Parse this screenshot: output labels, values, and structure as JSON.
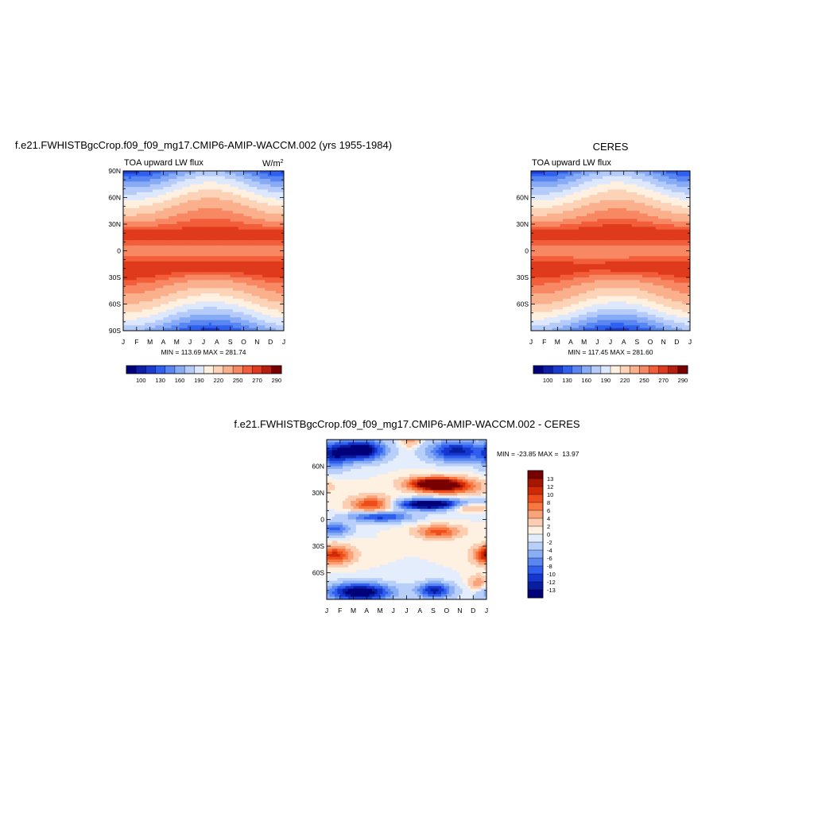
{
  "chart_data": [
    {
      "type": "heatmap",
      "title": "f.e21.FWHISTBgcCrop.f09_f09_mg17.CMIP6-AMIP-WACCM.002 (yrs 1955-1984)",
      "left_label": "TOA upward LW flux",
      "units_base": "W/m",
      "units_exp": "2",
      "x_ticks": [
        "J",
        "F",
        "M",
        "A",
        "M",
        "J",
        "J",
        "A",
        "S",
        "O",
        "N",
        "D",
        "J"
      ],
      "y_ticks": [
        "90N",
        "60N",
        "30N",
        "0",
        "30S",
        "60S",
        "90S"
      ],
      "stats": "MIN = 113.69 MAX = 281.74",
      "colorbar_ticks": [
        "100",
        "130",
        "160",
        "190",
        "220",
        "250",
        "270",
        "290"
      ],
      "xlim": [
        0,
        12
      ],
      "ylim": [
        -90,
        90
      ]
    },
    {
      "type": "heatmap",
      "title": "CERES",
      "left_label": "TOA upward LW flux",
      "x_ticks": [
        "J",
        "F",
        "M",
        "A",
        "M",
        "J",
        "J",
        "A",
        "S",
        "O",
        "N",
        "D",
        "J"
      ],
      "y_ticks": [
        "60N",
        "30N",
        "0",
        "30S",
        "60S"
      ],
      "stats": "MIN = 117.45 MAX = 281.60",
      "colorbar_ticks": [
        "100",
        "130",
        "160",
        "190",
        "220",
        "250",
        "270",
        "290"
      ],
      "xlim": [
        0,
        12
      ],
      "ylim": [
        -90,
        90
      ]
    },
    {
      "type": "heatmap",
      "title": "f.e21.FWHISTBgcCrop.f09_f09_mg17.CMIP6-AMIP-WACCM.002 - CERES",
      "x_ticks": [
        "J",
        "F",
        "M",
        "A",
        "M",
        "J",
        "J",
        "A",
        "S",
        "O",
        "N",
        "D",
        "J"
      ],
      "y_ticks": [
        "60N",
        "30N",
        "0",
        "30S",
        "60S"
      ],
      "stats": "MIN = -23.85 MAX =  13.97",
      "colorbar_ticks": [
        "13",
        "12",
        "10",
        "8",
        "6",
        "4",
        "2",
        "0",
        "-2",
        "-4",
        "-6",
        "-8",
        "-10",
        "-12",
        "-13"
      ],
      "xlim": [
        0,
        12
      ],
      "ylim": [
        -90,
        90
      ]
    }
  ],
  "colors": {
    "abs_scale": [
      "#00007f",
      "#0d1ea8",
      "#1a3cd1",
      "#3060f0",
      "#5a86f2",
      "#88abf6",
      "#b5cbfa",
      "#dde8fd",
      "#fff0e0",
      "#fdd3b8",
      "#fbb08d",
      "#f88863",
      "#f25e3a",
      "#e03a1d",
      "#b81f10",
      "#7a0000"
    ],
    "diff_scale": [
      "#780000",
      "#a81500",
      "#cf2a05",
      "#ef4c1c",
      "#f7773f",
      "#f9a37a",
      "#fccdb0",
      "#fef1e2",
      "#e3edfc",
      "#b8cffa",
      "#8aaef5",
      "#5a86f1",
      "#2f5fee",
      "#1537cf",
      "#081ea0",
      "#00007a"
    ]
  }
}
